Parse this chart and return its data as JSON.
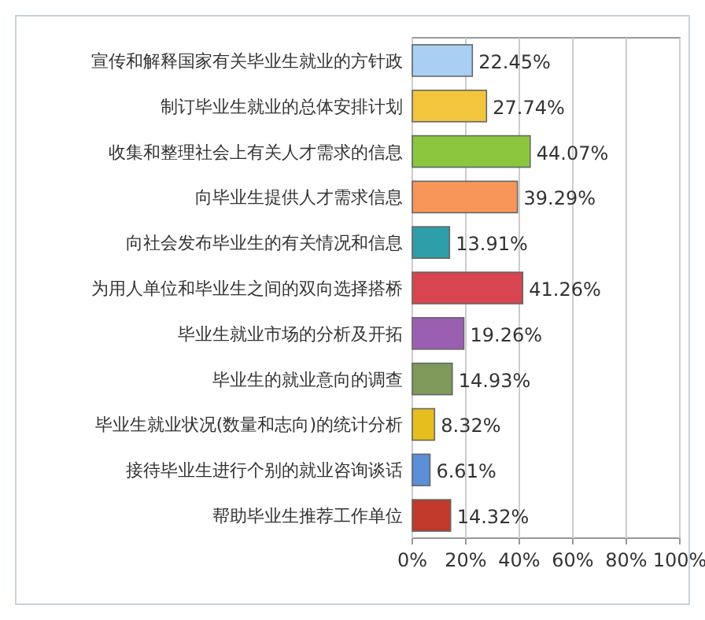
{
  "chart_data": {
    "type": "bar",
    "orientation": "horizontal",
    "categories": [
      "宣传和解释国家有关毕业生就业的方针政",
      "制订毕业生就业的总体安排计划",
      "收集和整理社会上有关人才需求的信息",
      "向毕业生提供人才需求信息",
      "向社会发布毕业生的有关情况和信息",
      "为用人单位和毕业生之间的双向选择搭桥",
      "毕业生就业市场的分析及开拓",
      "毕业生的就业意向的调查",
      "毕业生就业状况(数量和志向)的统计分析",
      "接待毕业生进行个别的就业咨询谈话",
      "帮助毕业生推荐工作单位"
    ],
    "values": [
      22.45,
      27.74,
      44.07,
      39.29,
      13.91,
      41.26,
      19.26,
      14.93,
      8.32,
      6.61,
      14.32
    ],
    "colors": [
      "#a9cff2",
      "#f3c53c",
      "#8cc63f",
      "#f8965a",
      "#2e9ea8",
      "#d8444f",
      "#9b5fb2",
      "#7f9a5a",
      "#e6bf1e",
      "#5b8fd8",
      "#c0392b"
    ],
    "value_labels": [
      "22.45%",
      "27.74%",
      "44.07%",
      "39.29%",
      "13.91%",
      "41.26%",
      "19.26%",
      "14.93%",
      "8.32%",
      "6.61%",
      "14.32%"
    ],
    "xlim": [
      0,
      100
    ],
    "xticks": [
      {
        "value": 0,
        "label": "0%"
      },
      {
        "value": 20,
        "label": "20%"
      },
      {
        "value": 40,
        "label": "40%"
      },
      {
        "value": 60,
        "label": "60%"
      },
      {
        "value": 80,
        "label": "80%"
      },
      {
        "value": 100,
        "label": "100%"
      }
    ],
    "grid": "x"
  }
}
